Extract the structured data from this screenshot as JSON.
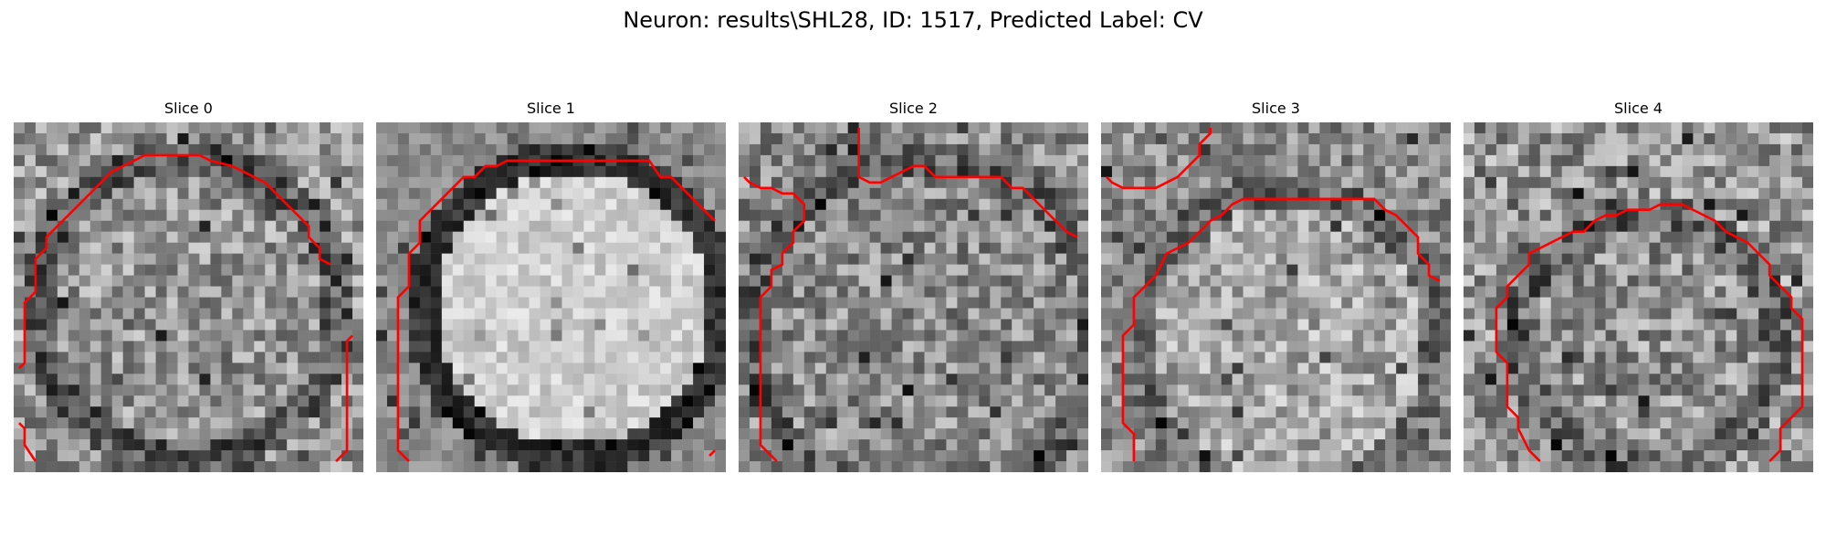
{
  "figure": {
    "title": "Neuron: results\\SHL28, ID: 1517, Predicted Label: CV",
    "contour_color": "#ff0000"
  },
  "slices": [
    {
      "label": "Slice 0"
    },
    {
      "label": "Slice 1"
    },
    {
      "label": "Slice 2"
    },
    {
      "label": "Slice 3"
    },
    {
      "label": "Slice 4"
    }
  ]
}
